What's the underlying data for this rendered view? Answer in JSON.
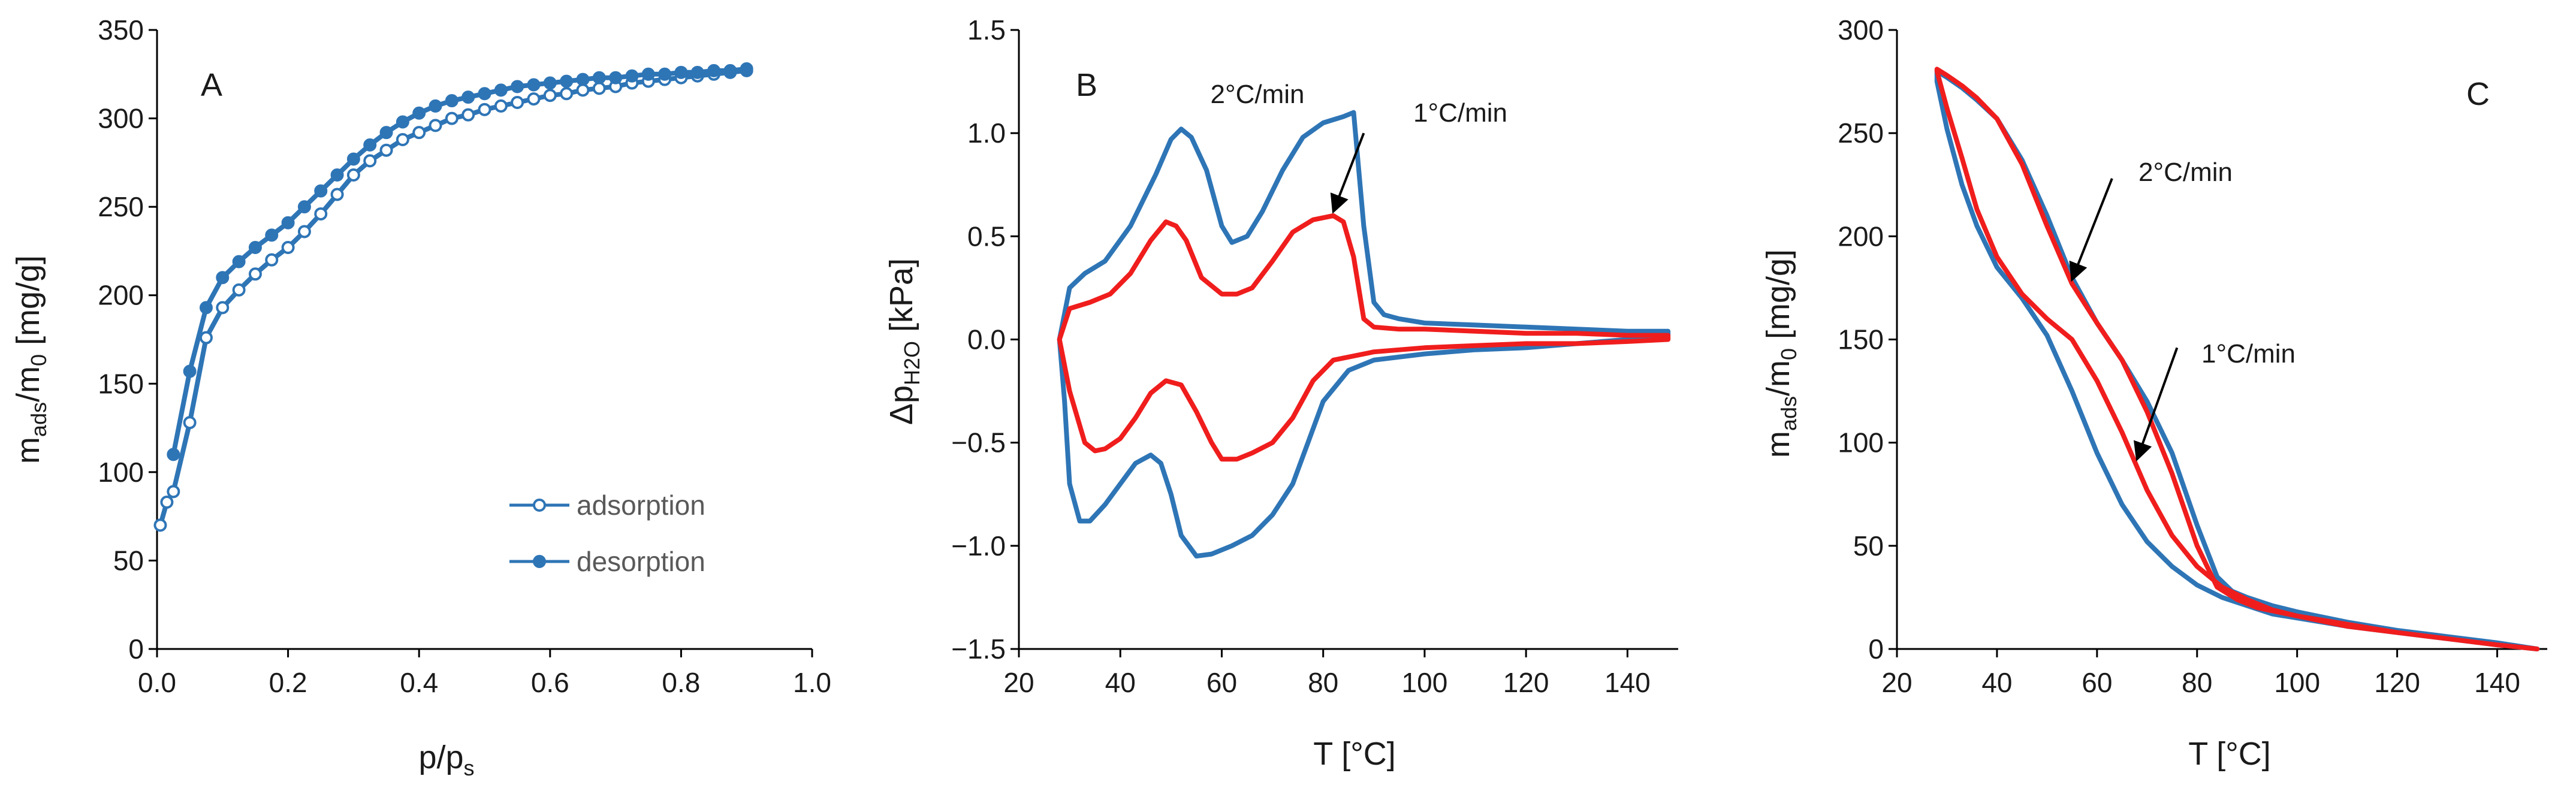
{
  "colors": {
    "blue": "#2e75b6",
    "red": "#f01d1d",
    "black": "#000000"
  },
  "chart_data": [
    {
      "type": "line",
      "panel_label": "A",
      "title": "",
      "xlabel": {
        "main": "p/p",
        "sub": "s"
      },
      "ylabel": {
        "pre": "m",
        "sub1": "ads",
        "mid": "/m",
        "sub2": "0",
        "post": " [mg/g]"
      },
      "xlim": [
        0,
        1.0
      ],
      "ylim": [
        0,
        350
      ],
      "xticks": [
        0,
        0.2,
        0.4,
        0.6,
        0.8,
        1.0
      ],
      "xtick_labels": [
        "0.0",
        "0.2",
        "0.4",
        "0.6",
        "0.8",
        "1.0"
      ],
      "yticks": [
        0,
        50,
        100,
        150,
        200,
        250,
        300,
        350
      ],
      "ytick_labels": [
        "0",
        "50",
        "100",
        "150",
        "200",
        "250",
        "300",
        "350"
      ],
      "legend": {
        "position": "bottom-right",
        "entries": [
          "adsorption",
          "desorption"
        ]
      },
      "series": [
        {
          "name": "adsorption",
          "color": "#2e75b6",
          "marker": "open-circle",
          "x": [
            0.005,
            0.015,
            0.025,
            0.05,
            0.075,
            0.1,
            0.125,
            0.15,
            0.175,
            0.2,
            0.225,
            0.25,
            0.275,
            0.3,
            0.325,
            0.35,
            0.375,
            0.4,
            0.425,
            0.45,
            0.475,
            0.5,
            0.525,
            0.55,
            0.575,
            0.6,
            0.625,
            0.65,
            0.675,
            0.7,
            0.725,
            0.75,
            0.775,
            0.8,
            0.825,
            0.85,
            0.875,
            0.9
          ],
          "y": [
            70,
            83,
            89,
            128,
            176,
            193,
            203,
            212,
            220,
            227,
            236,
            246,
            257,
            268,
            276,
            282,
            288,
            292,
            296,
            300,
            302,
            305,
            307,
            309,
            311,
            313,
            314,
            316,
            317,
            318,
            320,
            321,
            322,
            323,
            324,
            325,
            326,
            327
          ]
        },
        {
          "name": "desorption",
          "color": "#2e75b6",
          "marker": "filled-circle",
          "x": [
            0.025,
            0.05,
            0.075,
            0.1,
            0.125,
            0.15,
            0.175,
            0.2,
            0.225,
            0.25,
            0.275,
            0.3,
            0.325,
            0.35,
            0.375,
            0.4,
            0.425,
            0.45,
            0.475,
            0.5,
            0.525,
            0.55,
            0.575,
            0.6,
            0.625,
            0.65,
            0.675,
            0.7,
            0.725,
            0.75,
            0.775,
            0.8,
            0.825,
            0.85,
            0.875,
            0.9
          ],
          "y": [
            110,
            157,
            193,
            210,
            219,
            227,
            234,
            241,
            250,
            259,
            268,
            277,
            285,
            292,
            298,
            303,
            307,
            310,
            312,
            314,
            316,
            318,
            319,
            320,
            321,
            322,
            323,
            323,
            324,
            325,
            325,
            326,
            326,
            327,
            327,
            328
          ]
        }
      ]
    },
    {
      "type": "line",
      "panel_label": "B",
      "title": "",
      "xlabel": "T [°C]",
      "ylabel": {
        "pre": "Δp",
        "sub": "H2O",
        "post": " [kPa]"
      },
      "xlim": [
        20,
        150
      ],
      "ylim": [
        -1.5,
        1.5
      ],
      "xticks": [
        20,
        40,
        60,
        80,
        100,
        120,
        140
      ],
      "xtick_labels": [
        "20",
        "40",
        "60",
        "80",
        "100",
        "120",
        "140"
      ],
      "yticks": [
        -1.5,
        -1.0,
        -0.5,
        0.0,
        0.5,
        1.0,
        1.5
      ],
      "ytick_labels": [
        "−1.5",
        "−1.0",
        "−0.5",
        "0.0",
        "0.5",
        "1.0",
        "1.5"
      ],
      "annotations": [
        {
          "text": "2°C/min",
          "at": [
            62,
            1.17
          ]
        },
        {
          "text": "1°C/min",
          "arrow_from": [
            88,
            1.0
          ],
          "arrow_to": [
            82,
            0.62
          ]
        }
      ],
      "series": [
        {
          "name": "2°C/min",
          "color": "#2e75b6",
          "closed": true,
          "x": [
            28,
            30,
            33,
            37,
            42,
            47,
            50,
            52,
            54,
            57,
            60,
            62,
            65,
            68,
            72,
            76,
            80,
            84,
            86,
            88,
            90,
            92,
            95,
            100,
            110,
            120,
            130,
            140,
            148,
            148,
            140,
            130,
            120,
            110,
            100,
            90,
            85,
            80,
            77,
            74,
            70,
            66,
            62,
            58,
            55,
            52,
            50,
            48,
            46,
            43,
            40,
            37,
            34,
            32,
            30,
            29,
            28
          ],
          "y": [
            0.0,
            0.25,
            0.32,
            0.38,
            0.55,
            0.8,
            0.97,
            1.02,
            0.98,
            0.82,
            0.55,
            0.47,
            0.5,
            0.62,
            0.82,
            0.98,
            1.05,
            1.08,
            1.1,
            0.55,
            0.18,
            0.12,
            0.1,
            0.08,
            0.07,
            0.06,
            0.05,
            0.04,
            0.04,
            0.02,
            0.0,
            -0.02,
            -0.04,
            -0.05,
            -0.07,
            -0.1,
            -0.15,
            -0.3,
            -0.5,
            -0.7,
            -0.85,
            -0.95,
            -1.0,
            -1.04,
            -1.05,
            -0.95,
            -0.75,
            -0.6,
            -0.56,
            -0.6,
            -0.7,
            -0.8,
            -0.88,
            -0.88,
            -0.7,
            -0.3,
            0.0
          ]
        },
        {
          "name": "1°C/min",
          "color": "#f01d1d",
          "closed": true,
          "x": [
            28,
            30,
            34,
            38,
            42,
            46,
            49,
            51,
            53,
            56,
            60,
            63,
            66,
            70,
            74,
            78,
            82,
            84,
            86,
            88,
            90,
            95,
            100,
            110,
            120,
            130,
            140,
            148,
            148,
            140,
            130,
            120,
            110,
            100,
            90,
            82,
            78,
            74,
            70,
            66,
            63,
            60,
            58,
            55,
            52,
            49,
            46,
            43,
            40,
            37,
            35,
            33,
            30,
            28
          ],
          "y": [
            0.0,
            0.15,
            0.18,
            0.22,
            0.32,
            0.48,
            0.57,
            0.55,
            0.48,
            0.3,
            0.22,
            0.22,
            0.25,
            0.38,
            0.52,
            0.58,
            0.6,
            0.57,
            0.4,
            0.1,
            0.06,
            0.05,
            0.05,
            0.04,
            0.03,
            0.03,
            0.02,
            0.02,
            0.0,
            -0.01,
            -0.02,
            -0.02,
            -0.03,
            -0.04,
            -0.06,
            -0.1,
            -0.2,
            -0.38,
            -0.5,
            -0.55,
            -0.58,
            -0.58,
            -0.5,
            -0.35,
            -0.22,
            -0.2,
            -0.26,
            -0.38,
            -0.48,
            -0.53,
            -0.54,
            -0.5,
            -0.25,
            0.0
          ]
        }
      ]
    },
    {
      "type": "line",
      "panel_label": "C",
      "title": "",
      "xlabel": "T [°C]",
      "ylabel": {
        "pre": "m",
        "sub1": "ads",
        "mid": "/m",
        "sub2": "0",
        "post": " [mg/g]"
      },
      "xlim": [
        20,
        150
      ],
      "ylim": [
        0,
        300
      ],
      "xticks": [
        20,
        40,
        60,
        80,
        100,
        120,
        140
      ],
      "xtick_labels": [
        "20",
        "40",
        "60",
        "80",
        "100",
        "120",
        "140"
      ],
      "yticks": [
        0,
        50,
        100,
        150,
        200,
        250,
        300
      ],
      "ytick_labels": [
        "0",
        "50",
        "100",
        "150",
        "200",
        "250",
        "300"
      ],
      "annotations": [
        {
          "text": "2°C/min",
          "arrow_from": [
            63,
            228
          ],
          "arrow_to": [
            55,
            179
          ]
        },
        {
          "text": "1°C/min",
          "arrow_from": [
            76,
            146
          ],
          "arrow_to": [
            68,
            92
          ]
        }
      ],
      "series": [
        {
          "name": "2°C/min",
          "color": "#2e75b6",
          "closed": true,
          "x": [
            28,
            30,
            33,
            36,
            40,
            45,
            50,
            55,
            60,
            65,
            70,
            75,
            80,
            84,
            87,
            90,
            95,
            100,
            110,
            120,
            130,
            140,
            148,
            140,
            130,
            120,
            110,
            100,
            95,
            90,
            85,
            80,
            75,
            70,
            65,
            60,
            55,
            50,
            45,
            40,
            36,
            33,
            30,
            28
          ],
          "y": [
            280,
            277,
            272,
            266,
            257,
            237,
            210,
            180,
            158,
            140,
            120,
            95,
            60,
            35,
            28,
            25,
            21,
            18,
            13,
            9,
            6,
            3,
            0,
            2,
            5,
            8,
            11,
            15,
            17,
            21,
            25,
            31,
            40,
            52,
            70,
            95,
            125,
            152,
            170,
            185,
            205,
            225,
            252,
            275
          ]
        },
        {
          "name": "1°C/min",
          "color": "#f01d1d",
          "closed": true,
          "x": [
            28,
            30,
            33,
            36,
            40,
            45,
            50,
            55,
            60,
            65,
            70,
            75,
            80,
            84,
            88,
            92,
            100,
            110,
            120,
            130,
            140,
            148,
            140,
            130,
            120,
            110,
            100,
            95,
            90,
            85,
            80,
            75,
            70,
            65,
            60,
            55,
            50,
            45,
            40,
            36,
            33,
            30,
            28
          ],
          "y": [
            281,
            278,
            273,
            267,
            257,
            235,
            205,
            177,
            158,
            140,
            115,
            85,
            50,
            30,
            24,
            20,
            16,
            12,
            8,
            5,
            2,
            0,
            2,
            5,
            8,
            11,
            16,
            19,
            24,
            30,
            40,
            55,
            77,
            105,
            130,
            150,
            160,
            172,
            190,
            213,
            238,
            262,
            280
          ]
        }
      ]
    }
  ]
}
